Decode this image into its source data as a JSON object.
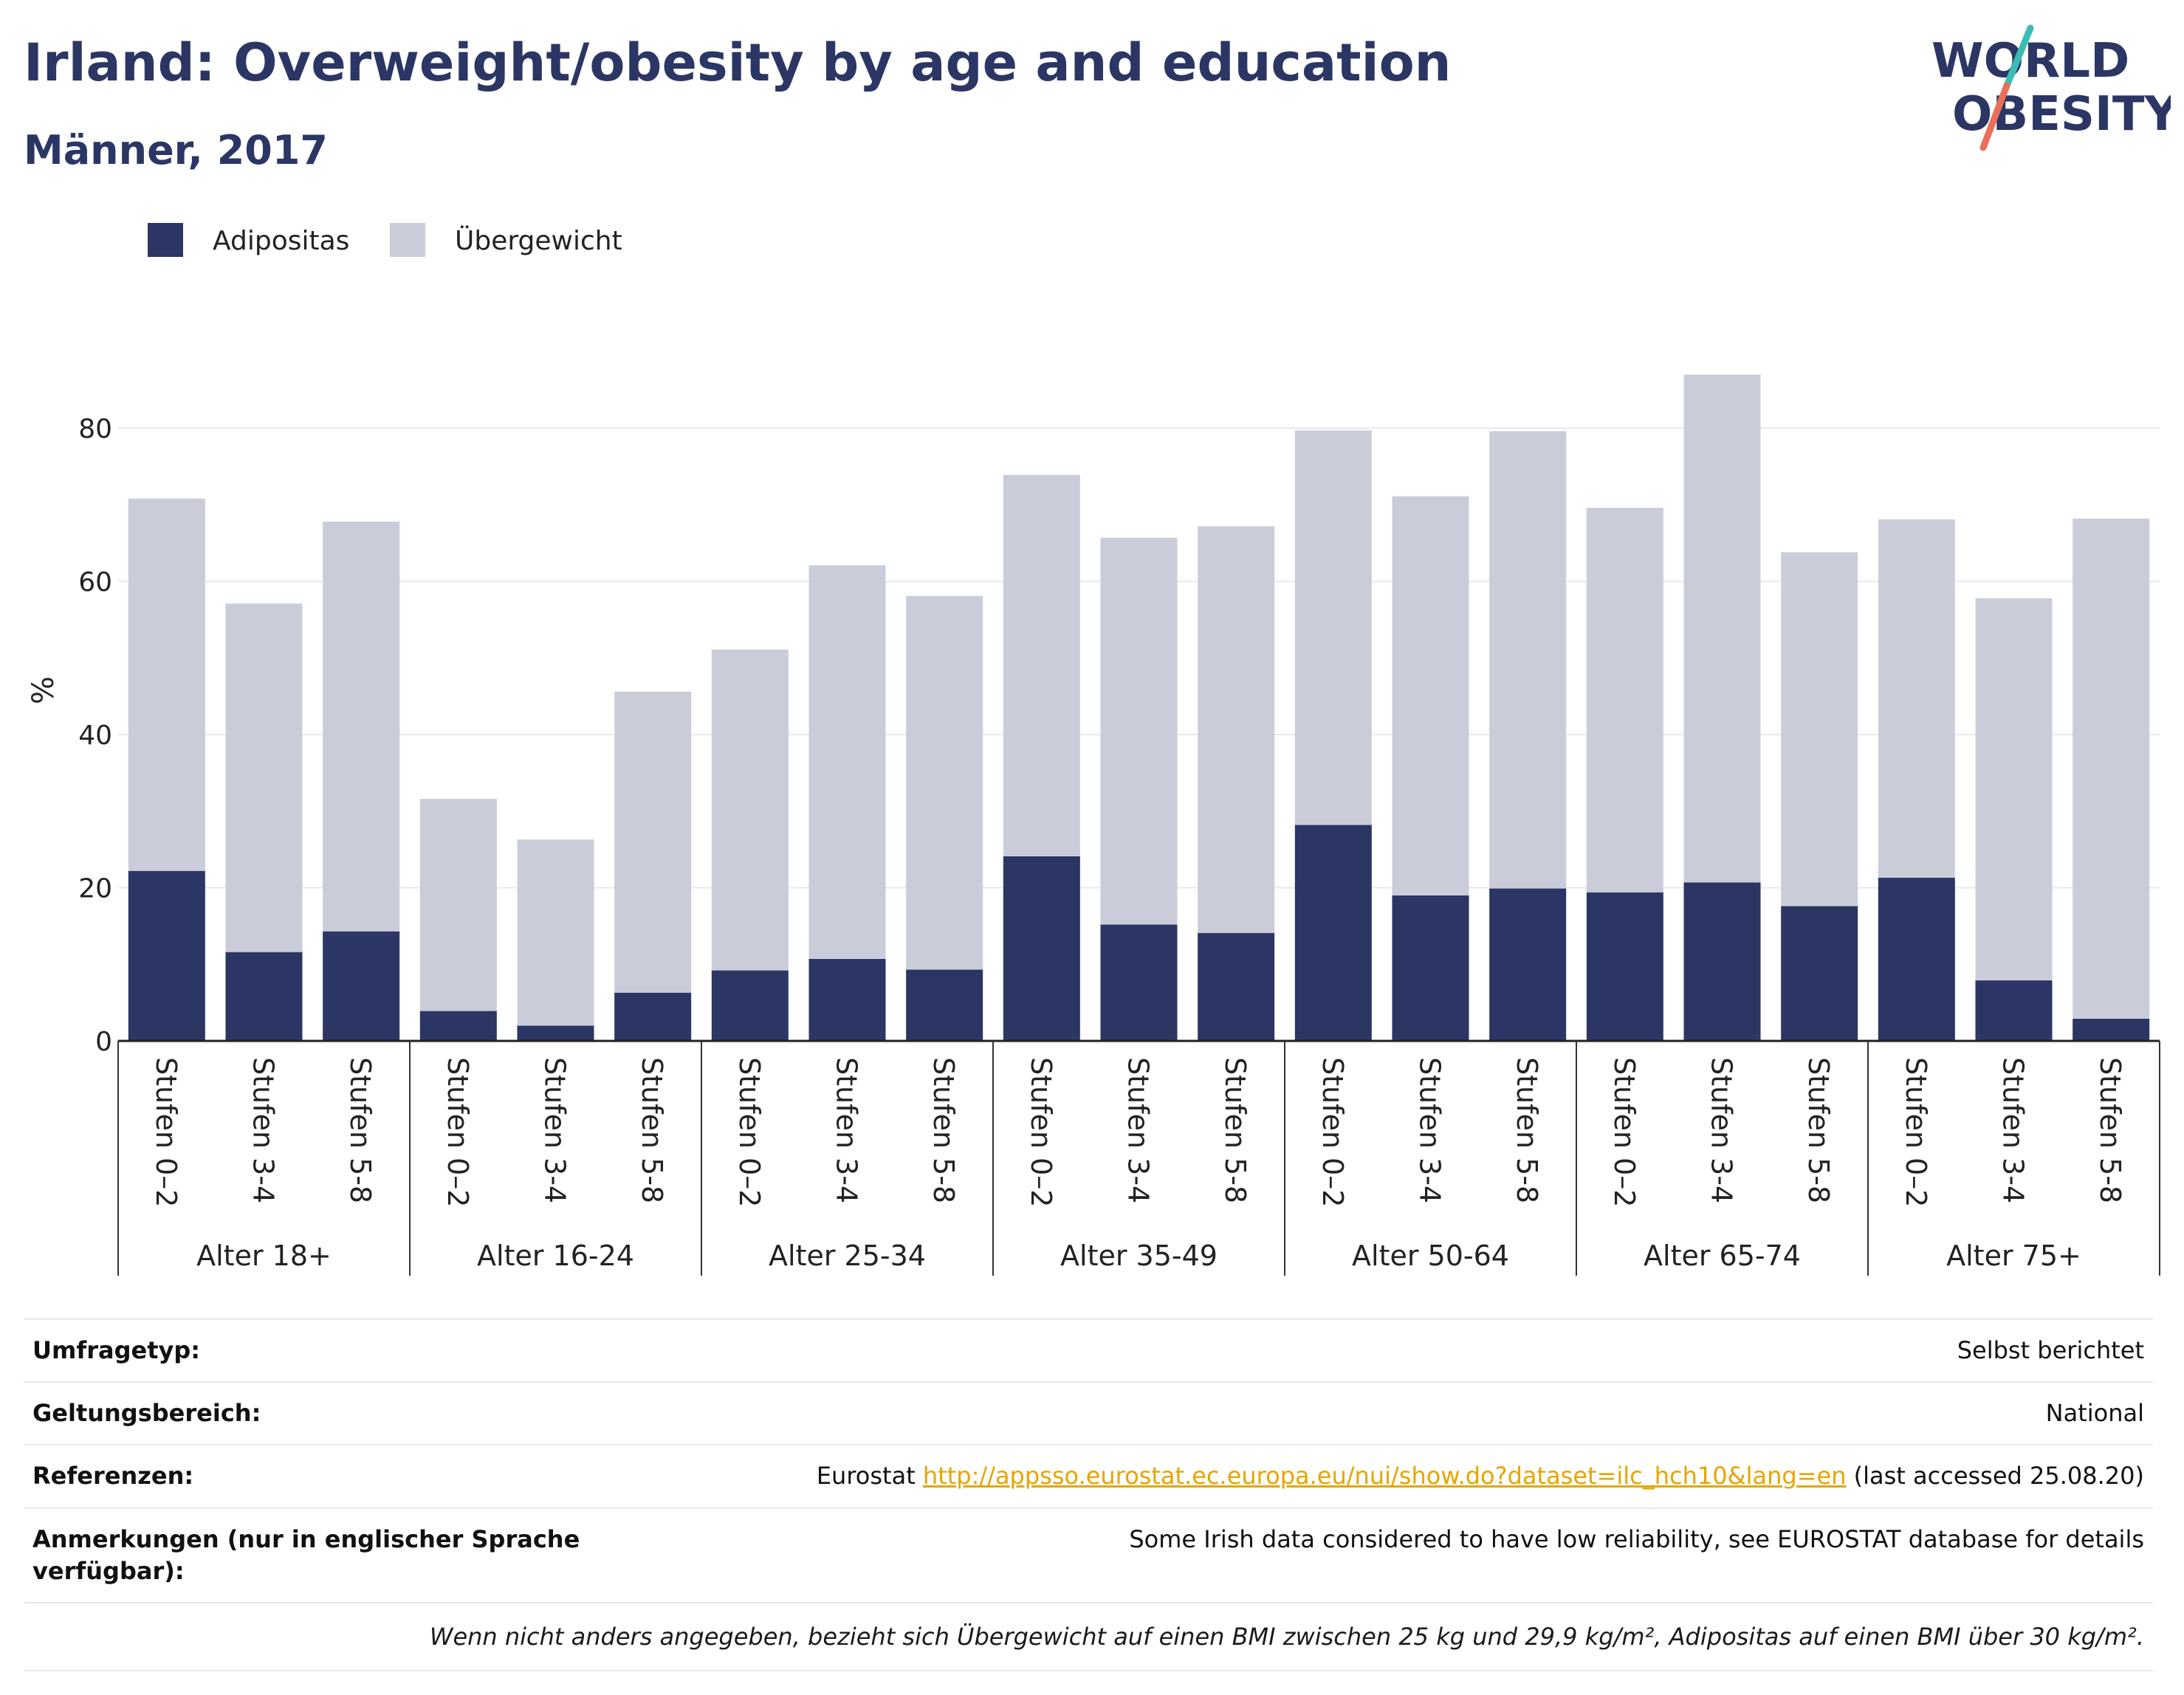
{
  "title": "Irland: Overweight/obesity by age and education",
  "subtitle": "Männer, 2017",
  "logo": {
    "line1": "WORLD",
    "line2": "OBESITY"
  },
  "colors": {
    "obesity": "#2b3664",
    "overweight": "#cacdd9",
    "title": "#2b3664",
    "grid": "#e8e9ee",
    "link": "#e6a500"
  },
  "chart_data": {
    "type": "bar",
    "stacked": true,
    "ylabel": "%",
    "ylim": [
      0,
      90
    ],
    "yticks": [
      0,
      20,
      40,
      60,
      80
    ],
    "grid": true,
    "legend_position": "top-left",
    "groups": [
      "Alter 18+",
      "Alter 16-24",
      "Alter 25-34",
      "Alter 35-49",
      "Alter 50-64",
      "Alter 65-74",
      "Alter 75+"
    ],
    "subcategories": [
      "Stufen 0–2",
      "Stufen 3-4",
      "Stufen 5-8"
    ],
    "series": [
      {
        "name": "Adipositas",
        "color": "#2b3664",
        "values": [
          22.2,
          11.6,
          14.3,
          3.9,
          2.0,
          6.3,
          9.2,
          10.7,
          9.3,
          24.1,
          15.2,
          14.1,
          28.2,
          19.0,
          19.9,
          19.4,
          20.7,
          17.6,
          21.3,
          7.9,
          2.9
        ]
      },
      {
        "name": "Übergewicht",
        "color": "#cacdd9",
        "values": [
          48.6,
          45.5,
          53.5,
          27.7,
          24.3,
          39.3,
          41.9,
          51.4,
          48.8,
          49.8,
          50.5,
          53.1,
          51.5,
          52.1,
          59.7,
          50.2,
          66.3,
          46.2,
          46.8,
          49.9,
          65.3
        ]
      }
    ]
  },
  "notes": [
    {
      "key": "Umfragetyp:",
      "value": "Selbst berichtet"
    },
    {
      "key": "Geltungsbereich:",
      "value": "National"
    },
    {
      "key": "Referenzen:",
      "prefix": "Eurostat ",
      "link": "http://appsso.eurostat.ec.europa.eu/nui/show.do?dataset=ilc_hch10&lang=en",
      "suffix": " (last accessed 25.08.20)"
    },
    {
      "key": "Anmerkungen (nur in englischer Sprache verfügbar):",
      "value": "Some Irish data considered to have low reliability, see EUROSTAT database for details"
    }
  ],
  "footnote": "Wenn nicht anders angegeben, bezieht sich Übergewicht auf einen BMI zwischen 25 kg und 29,9 kg/m², Adipositas auf einen BMI über 30 kg/m²."
}
